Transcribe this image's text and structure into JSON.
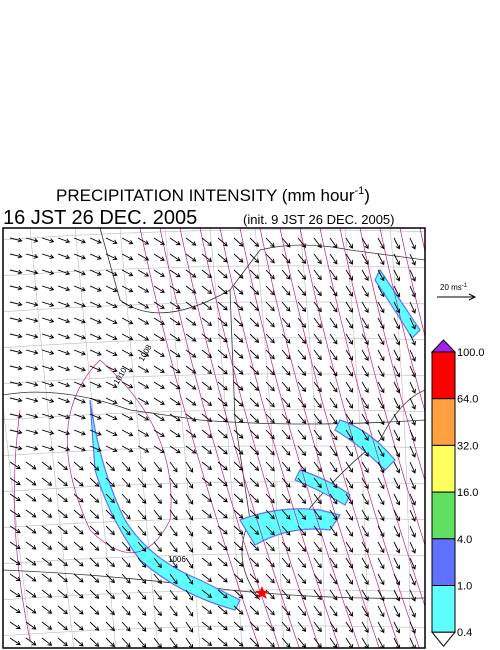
{
  "title": {
    "text": "PRECIPITATION INTENSITY (mm hour",
    "superscript": "-1",
    "end": ")"
  },
  "valid_time": "16 JST 26 DEC. 2005",
  "init_time": "(init. 9 JST 26 DEC. 2005)",
  "vector_legend": {
    "text": "20 ms",
    "superscript": "-1"
  },
  "contour_labels": [
    "1010",
    "1008",
    "1006"
  ],
  "colorbar": {
    "labels": [
      "100.0",
      "64.0",
      "32.0",
      "16.0",
      "4.0",
      "1.0",
      "0.4"
    ],
    "colors": [
      "#a020f0",
      "#ff0000",
      "#ffa040",
      "#ffff60",
      "#60e060",
      "#6070ff",
      "#60ffff",
      "#ffffff"
    ]
  }
}
